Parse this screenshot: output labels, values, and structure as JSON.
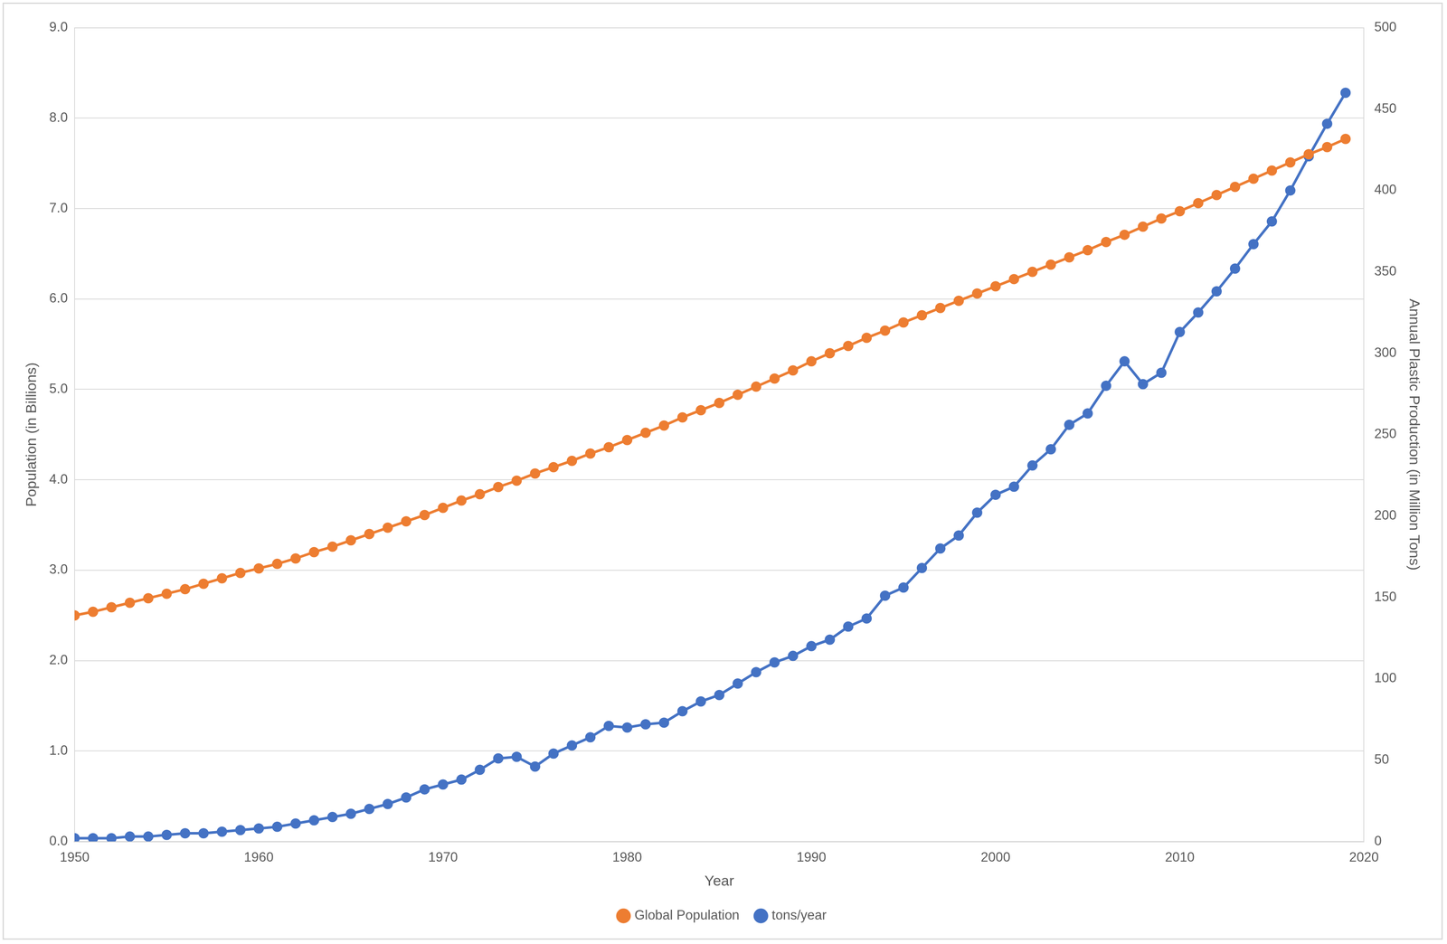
{
  "chart_data": {
    "type": "line",
    "x_label": "Year",
    "y_label": "Population (in Billions)",
    "y2_label": "Annual Plastic Production (in Million Tons)",
    "x": [
      1950,
      1951,
      1952,
      1953,
      1954,
      1955,
      1956,
      1957,
      1958,
      1959,
      1960,
      1961,
      1962,
      1963,
      1964,
      1965,
      1966,
      1967,
      1968,
      1969,
      1970,
      1971,
      1972,
      1973,
      1974,
      1975,
      1976,
      1977,
      1978,
      1979,
      1980,
      1981,
      1982,
      1983,
      1984,
      1985,
      1986,
      1987,
      1988,
      1989,
      1990,
      1991,
      1992,
      1993,
      1994,
      1995,
      1996,
      1997,
      1998,
      1999,
      2000,
      2001,
      2002,
      2003,
      2004,
      2005,
      2006,
      2007,
      2008,
      2009,
      2010,
      2011,
      2012,
      2013,
      2014,
      2015,
      2016,
      2017,
      2018,
      2019
    ],
    "series": [
      {
        "name": "Global Population",
        "color": "#ed7d31",
        "marker": "circle",
        "line_style": "solid",
        "values": [
          2.5,
          2.54,
          2.59,
          2.64,
          2.69,
          2.74,
          2.79,
          2.85,
          2.91,
          2.97,
          3.02,
          3.07,
          3.13,
          3.2,
          3.26,
          3.33,
          3.4,
          3.47,
          3.54,
          3.61,
          3.69,
          3.77,
          3.84,
          3.92,
          3.99,
          4.07,
          4.14,
          4.21,
          4.29,
          4.36,
          4.44,
          4.52,
          4.6,
          4.69,
          4.77,
          4.85,
          4.94,
          5.03,
          5.12,
          5.21,
          5.31,
          5.4,
          5.48,
          5.57,
          5.65,
          5.74,
          5.82,
          5.9,
          5.98,
          6.06,
          6.14,
          6.22,
          6.3,
          6.38,
          6.46,
          6.54,
          6.63,
          6.71,
          6.8,
          6.89,
          6.97,
          7.06,
          7.15,
          7.24,
          7.33,
          7.42,
          7.51,
          7.6,
          7.68,
          7.77
        ]
      },
      {
        "name": "tons/year",
        "color": "#4472c4",
        "marker": "circle",
        "line_style": "solid",
        "axis": "y2",
        "values": [
          2,
          2,
          2,
          3,
          3,
          4,
          5,
          5,
          6,
          7,
          8,
          9,
          11,
          13,
          15,
          17,
          20,
          23,
          27,
          32,
          35,
          38,
          44,
          51,
          52,
          46,
          54,
          59,
          64,
          71,
          70,
          72,
          73,
          80,
          86,
          90,
          97,
          104,
          110,
          114,
          120,
          124,
          132,
          137,
          151,
          156,
          168,
          180,
          188,
          202,
          213,
          218,
          231,
          241,
          256,
          263,
          280,
          295,
          281,
          288,
          313,
          325,
          338,
          352,
          367,
          381,
          400,
          421,
          441,
          460
        ]
      }
    ],
    "xlim": [
      1950,
      2020
    ],
    "xticks": [
      1950,
      1960,
      1970,
      1980,
      1990,
      2000,
      2010,
      2020
    ],
    "ylim": [
      0,
      9
    ],
    "yticks": [
      {
        "value": 0,
        "label": "0.0"
      },
      {
        "value": 1,
        "label": "1.0"
      },
      {
        "value": 2,
        "label": "2.0"
      },
      {
        "value": 3,
        "label": "3.0"
      },
      {
        "value": 4,
        "label": "4.0"
      },
      {
        "value": 5,
        "label": "5.0"
      },
      {
        "value": 6,
        "label": "6.0"
      },
      {
        "value": 7,
        "label": "7.0"
      },
      {
        "value": 8,
        "label": "8.0"
      },
      {
        "value": 9,
        "label": "9.0"
      }
    ],
    "y2lim": [
      0,
      500
    ],
    "y2ticks": [
      0,
      50,
      100,
      150,
      200,
      250,
      300,
      350,
      400,
      450,
      500
    ],
    "grid": true,
    "legend": "bottom"
  }
}
